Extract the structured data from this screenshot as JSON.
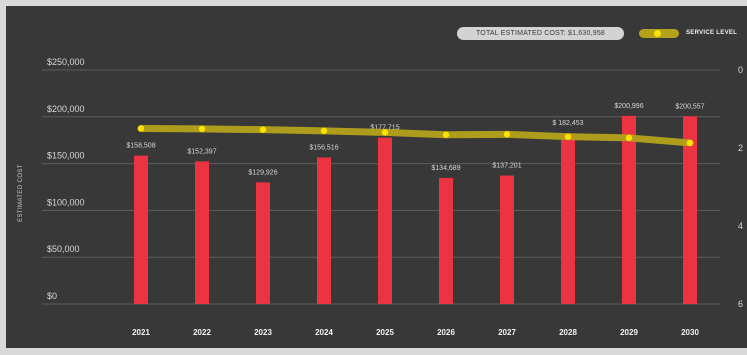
{
  "header": {
    "total_label": "TOTAL ESTIMATED COST: $1,630,958",
    "legend_label": "SERVICE LEVEL"
  },
  "colors": {
    "panel": "#383838",
    "bar": "#ec3342",
    "service_line": "#b4a21a",
    "service_point": "#ffe100",
    "grid": "#5c5c5c",
    "text": "#d7d7d7"
  },
  "chart_data": {
    "type": "bar",
    "title": "",
    "xlabel": "",
    "ylabel": "ESTIMATED COST",
    "ylim": [
      0,
      250000
    ],
    "y_ticks": [
      "$0",
      "$50,000",
      "$100,000",
      "$150,000",
      "$200,000",
      "$250,000"
    ],
    "categories": [
      "2021",
      "2022",
      "2023",
      "2024",
      "2025",
      "2026",
      "2027",
      "2028",
      "2029",
      "2030"
    ],
    "series": [
      {
        "values": [
          158508,
          152397,
          129926,
          156516,
          177715,
          134689,
          137201,
          182453,
          200996,
          200557
        ],
        "labels": [
          "$158,508",
          "$152,397",
          "$129,926",
          "$156,516",
          "$177,715",
          "$134,689",
          "$137,201",
          "$ 182,453",
          "$200,996",
          "$200,557"
        ]
      },
      {
        "name": "SERVICE LEVEL",
        "axis": "right",
        "values": [
          1.5,
          1.51,
          1.53,
          1.56,
          1.6,
          1.66,
          1.65,
          1.71,
          1.74,
          1.87
        ]
      }
    ],
    "y2lim": [
      0,
      6
    ],
    "y2_ticks": [
      "0",
      "2",
      "4",
      "6"
    ],
    "legend": "top-right",
    "grid": true
  }
}
